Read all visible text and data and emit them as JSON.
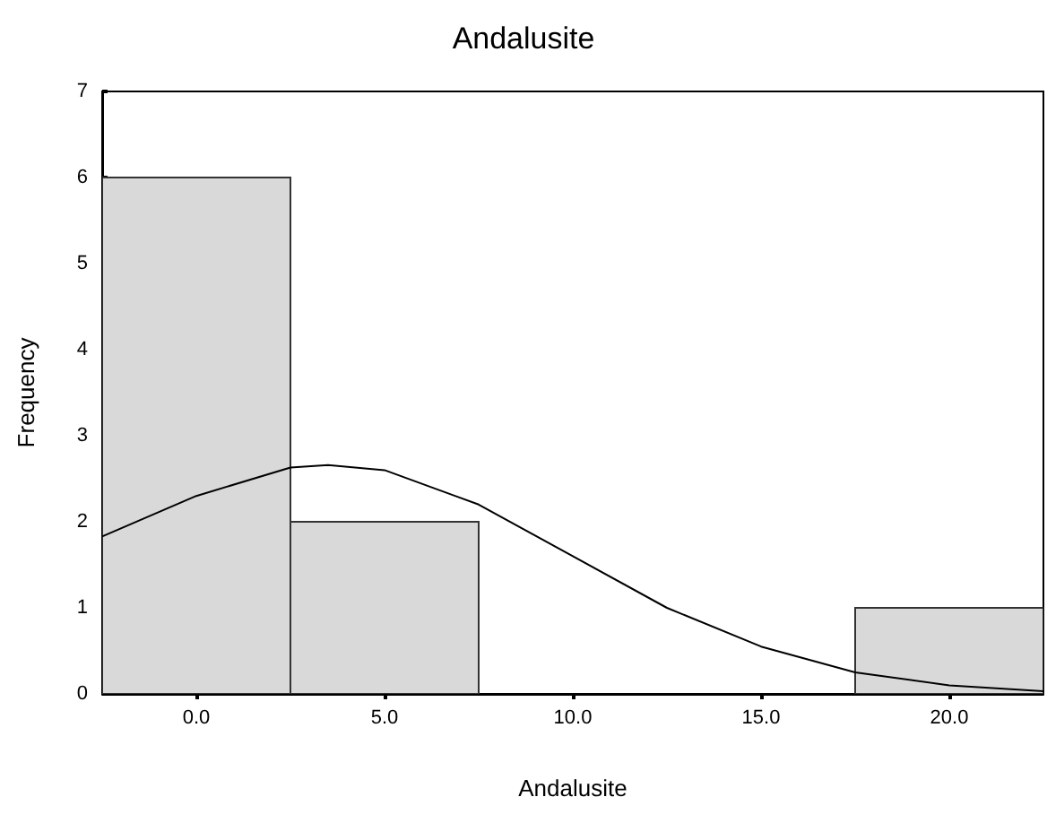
{
  "chart_data": {
    "type": "histogram",
    "title": "Andalusite",
    "xlabel": "Andalusite",
    "ylabel": "Frequency",
    "bins": [
      -2.5,
      2.5,
      7.5,
      12.5,
      17.5,
      22.5
    ],
    "values": [
      6,
      2,
      0,
      0,
      1
    ],
    "color": "#d9d9d9",
    "series": [
      {
        "type": "line",
        "color": "#000000",
        "marker": "none",
        "x": [
          -2.5,
          0,
          2.5,
          3.5,
          5,
          7.5,
          10,
          12.5,
          15,
          17.5,
          20,
          22.5
        ],
        "values": [
          1.83,
          2.3,
          2.63,
          2.66,
          2.6,
          2.2,
          1.6,
          1.0,
          0.55,
          0.25,
          0.1,
          0.03
        ]
      }
    ],
    "xlim": [
      -2.5,
      22.5
    ],
    "xticks": [
      {
        "value": 0,
        "label": "0.0"
      },
      {
        "value": 5,
        "label": "5.0"
      },
      {
        "value": 10,
        "label": "10.0"
      },
      {
        "value": 15,
        "label": "15.0"
      },
      {
        "value": 20,
        "label": "20.0"
      }
    ],
    "ylim": [
      0,
      7
    ],
    "yticks": [
      0,
      1,
      2,
      3,
      4,
      5,
      6,
      7
    ],
    "grid": false
  }
}
